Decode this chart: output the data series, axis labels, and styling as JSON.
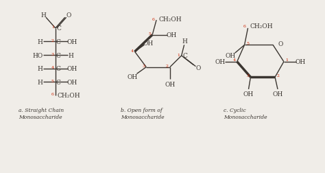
{
  "bg_color": "#f0ede8",
  "line_color": "#3a3530",
  "red_color": "#cc2200",
  "text_color": "#3a3530",
  "fig_width": 4.74,
  "fig_height": 2.53,
  "labels": {
    "a": "a. Straight Chain\nMonosaccharide",
    "b": "b. Open form of\nMonosaccharide",
    "c": "c. Cyclic\nMonosaccharide"
  }
}
